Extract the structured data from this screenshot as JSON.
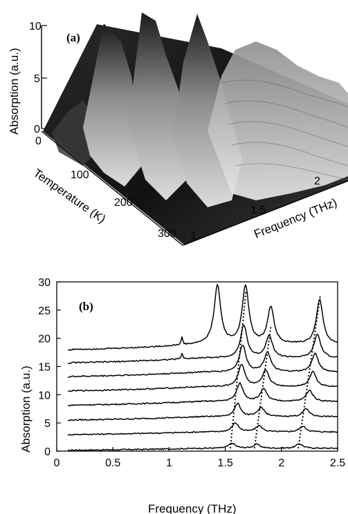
{
  "chart_data": [
    {
      "panel": "(a)",
      "type": "area",
      "zlabel": "Absorption (a.u.)",
      "zlim": [
        0,
        10
      ],
      "z_ticks": [
        "0",
        "5",
        "10"
      ],
      "ylabel": "Temperature (K)",
      "temperature_ticks": [
        "0",
        "100",
        "200",
        "300"
      ],
      "xlabel": "Frequency (THz)",
      "frequency_ticks": [
        "1",
        "1.5",
        "2"
      ],
      "grid": false
    },
    {
      "panel": "(b)",
      "type": "line",
      "xlabel": "Frequency (THz)",
      "ylabel": "Absorption (a.u.)",
      "xlim": [
        0,
        2.5
      ],
      "ylim": [
        0,
        30
      ],
      "x_ticks": [
        "0",
        "0.5",
        "1",
        "1.5",
        "2",
        "2.5"
      ],
      "y_ticks": [
        "0",
        "5",
        "10",
        "15",
        "20",
        "25",
        "30"
      ],
      "grid": false,
      "series": [
        {
          "offset": 0,
          "peaks": [
            {
              "x": 1.56,
              "h": 0.9
            },
            {
              "x": 1.78,
              "h": 0.7
            },
            {
              "x": 2.16,
              "h": 0.8
            }
          ],
          "baseline": 0.5
        },
        {
          "offset": 2.7,
          "peaks": [
            {
              "x": 1.59,
              "h": 1.6
            },
            {
              "x": 1.8,
              "h": 1.1
            },
            {
              "x": 2.19,
              "h": 1.0
            }
          ],
          "baseline": 0.7
        },
        {
          "offset": 5.2,
          "peaks": [
            {
              "x": 1.61,
              "h": 2.3
            },
            {
              "x": 1.82,
              "h": 1.6
            },
            {
              "x": 2.22,
              "h": 1.4
            }
          ],
          "baseline": 0.9
        },
        {
          "offset": 7.8,
          "peaks": [
            {
              "x": 1.63,
              "h": 3.2
            },
            {
              "x": 1.84,
              "h": 2.2
            },
            {
              "x": 2.25,
              "h": 2.0
            }
          ],
          "baseline": 1.0
        },
        {
          "offset": 10.3,
          "peaks": [
            {
              "x": 1.645,
              "h": 4.0
            },
            {
              "x": 1.86,
              "h": 2.9
            },
            {
              "x": 2.28,
              "h": 2.7
            }
          ],
          "baseline": 1.1
        },
        {
          "offset": 12.8,
          "peaks": [
            {
              "x": 1.655,
              "h": 4.8
            },
            {
              "x": 1.875,
              "h": 3.5
            },
            {
              "x": 2.3,
              "h": 3.3
            }
          ],
          "baseline": 1.2
        },
        {
          "offset": 15.2,
          "peaks": [
            {
              "x": 1.665,
              "h": 5.8
            },
            {
              "x": 1.89,
              "h": 4.0
            },
            {
              "x": 2.32,
              "h": 4.2
            }
          ],
          "baseline": 1.3
        },
        {
          "offset": 17.5,
          "peaks": [
            {
              "x": 1.43,
              "h": 10.4
            },
            {
              "x": 1.68,
              "h": 10.3
            },
            {
              "x": 1.905,
              "h": 6.5
            },
            {
              "x": 2.34,
              "h": 8.0
            }
          ],
          "baseline": 1.4
        }
      ],
      "guide_lines": [
        {
          "from": [
            1.545,
            0.5
          ],
          "to": [
            1.685,
            28.5
          ]
        },
        {
          "from": [
            1.76,
            0.5
          ],
          "to": [
            1.905,
            22.0
          ]
        },
        {
          "from": [
            2.15,
            0.5
          ],
          "to": [
            2.345,
            27.5
          ]
        }
      ]
    }
  ],
  "panel_a": {
    "label": "(a)",
    "z_axis_title": "Absorption (a.u.)",
    "z_ticks": [
      "0",
      "5",
      "10"
    ],
    "t_axis_title": "Temperature (K)",
    "t_ticks": [
      "0",
      "100",
      "200",
      "300"
    ],
    "f_axis_title": "Frequency (THz)",
    "f_ticks": [
      "1",
      "1.5",
      "2"
    ]
  },
  "panel_b": {
    "label": "(b)",
    "x_axis_title": "Frequency (THz)",
    "y_axis_title": "Absorption (a.u.)",
    "x_ticks": [
      "0",
      "0.5",
      "1",
      "1.5",
      "2",
      "2.5"
    ],
    "y_ticks": [
      "0",
      "5",
      "10",
      "15",
      "20",
      "25",
      "30"
    ]
  }
}
